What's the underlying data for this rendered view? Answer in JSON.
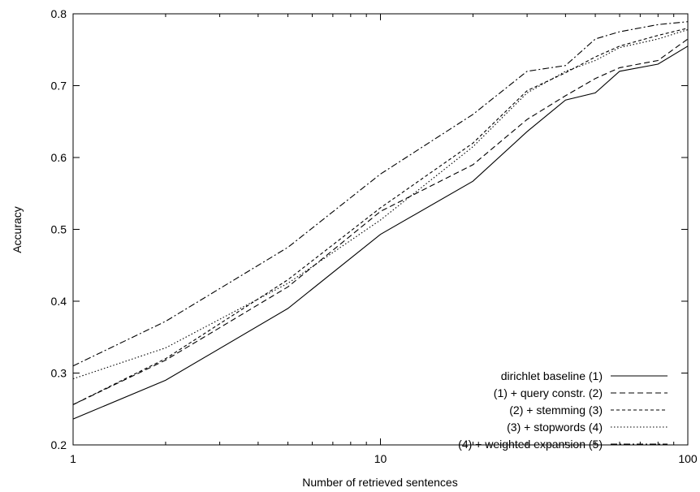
{
  "chart_data": {
    "type": "line",
    "xlabel": "Number of retrieved sentences",
    "ylabel": "Accuracy",
    "xscale": "log",
    "xlim": [
      1,
      100
    ],
    "ylim": [
      0.2,
      0.8
    ],
    "xticks": [
      1,
      10,
      100
    ],
    "xtick_labels": [
      "1",
      "10",
      "100"
    ],
    "yticks": [
      0.2,
      0.3,
      0.4,
      0.5,
      0.6,
      0.7,
      0.8
    ],
    "ytick_labels": [
      "0.2",
      "0.3",
      "0.4",
      "0.5",
      "0.6",
      "0.7",
      "0.8"
    ],
    "grid": false,
    "legend_position": "bottom-right",
    "series": [
      {
        "name": "dirichlet baseline (1)",
        "dash": "solid",
        "x": [
          1,
          2,
          5,
          10,
          20,
          30,
          40,
          50,
          60,
          80,
          100
        ],
        "y": [
          0.236,
          0.29,
          0.39,
          0.493,
          0.567,
          0.636,
          0.68,
          0.69,
          0.72,
          0.73,
          0.755
        ]
      },
      {
        "name": "(1) + query constr. (2)",
        "dash": "dashed",
        "x": [
          1,
          2,
          5,
          10,
          20,
          30,
          40,
          50,
          60,
          80,
          100
        ],
        "y": [
          0.256,
          0.318,
          0.42,
          0.525,
          0.59,
          0.653,
          0.686,
          0.71,
          0.725,
          0.735,
          0.765
        ]
      },
      {
        "name": "(2) + stemming (3)",
        "dash": "short-dashed",
        "x": [
          1,
          2,
          5,
          10,
          20,
          30,
          40,
          50,
          60,
          80,
          100
        ],
        "y": [
          0.256,
          0.32,
          0.43,
          0.53,
          0.62,
          0.693,
          0.718,
          0.74,
          0.755,
          0.77,
          0.78
        ]
      },
      {
        "name": "(3) + stopwords (4)",
        "dash": "dotted",
        "x": [
          1,
          2,
          5,
          10,
          20,
          30,
          40,
          50,
          60,
          80,
          100
        ],
        "y": [
          0.292,
          0.335,
          0.425,
          0.513,
          0.615,
          0.69,
          0.72,
          0.735,
          0.753,
          0.765,
          0.778
        ]
      },
      {
        "name": "(4) + weighted expansion (5)",
        "dash": "dash-dot",
        "x": [
          1,
          2,
          5,
          10,
          20,
          30,
          40,
          50,
          60,
          80,
          100
        ],
        "y": [
          0.31,
          0.372,
          0.475,
          0.577,
          0.66,
          0.72,
          0.728,
          0.765,
          0.775,
          0.785,
          0.789
        ]
      }
    ]
  }
}
